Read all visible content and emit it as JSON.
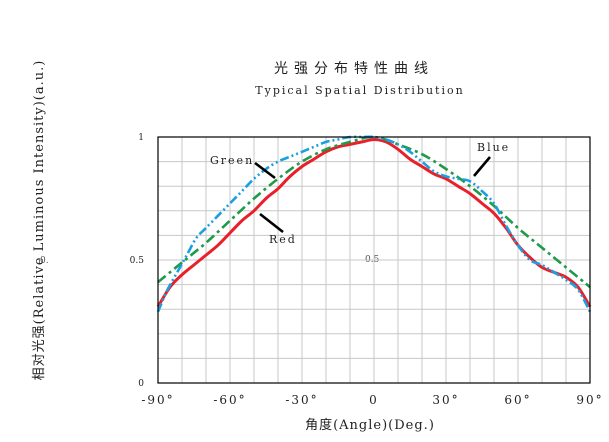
{
  "chart_data": {
    "type": "line",
    "title": "光强分布特性曲线",
    "subtitle": "Typical Spatial Distribution",
    "xlabel": "角度(Angle)(Deg.)",
    "ylabel": "相对光强(Relative Luminous Intensity)(a.u.)",
    "xlim": [
      -90,
      90
    ],
    "ylim": [
      0,
      1
    ],
    "x_ticks": [
      "-90°",
      "-60°",
      "-30°",
      "0",
      "30°",
      "60°",
      "90°"
    ],
    "y_ticks": [
      "0",
      "0.5",
      "1"
    ],
    "grid": true,
    "annotations": [
      "0.",
      "0.5"
    ],
    "series": [
      {
        "name": "Red",
        "color": "#e8202a",
        "dash": "solid",
        "x": [
          -90,
          -85,
          -80,
          -75,
          -70,
          -65,
          -60,
          -55,
          -50,
          -45,
          -40,
          -35,
          -30,
          -25,
          -20,
          -15,
          -10,
          -5,
          0,
          5,
          10,
          15,
          20,
          25,
          30,
          35,
          40,
          45,
          50,
          55,
          60,
          65,
          70,
          75,
          80,
          85,
          90
        ],
        "values": [
          0.31,
          0.39,
          0.44,
          0.48,
          0.52,
          0.56,
          0.61,
          0.66,
          0.7,
          0.75,
          0.79,
          0.84,
          0.88,
          0.91,
          0.94,
          0.96,
          0.97,
          0.98,
          0.99,
          0.98,
          0.95,
          0.91,
          0.88,
          0.85,
          0.83,
          0.8,
          0.77,
          0.73,
          0.69,
          0.63,
          0.56,
          0.51,
          0.47,
          0.45,
          0.43,
          0.39,
          0.31
        ]
      },
      {
        "name": "Green",
        "color": "#1f9a4a",
        "dash": "dashdot",
        "x": [
          -90,
          -80,
          -70,
          -60,
          -50,
          -40,
          -30,
          -20,
          -10,
          0,
          10,
          20,
          30,
          40,
          50,
          60,
          70,
          80,
          90
        ],
        "values": [
          0.41,
          0.49,
          0.57,
          0.66,
          0.75,
          0.83,
          0.9,
          0.95,
          0.98,
          1.0,
          0.97,
          0.93,
          0.87,
          0.8,
          0.72,
          0.63,
          0.55,
          0.47,
          0.39
        ]
      },
      {
        "name": "Blue",
        "color": "#1aa0e0",
        "dash": "dashdotdot",
        "x": [
          -90,
          -86,
          -82,
          -78,
          -74,
          -70,
          -65,
          -60,
          -55,
          -50,
          -45,
          -40,
          -35,
          -30,
          -25,
          -20,
          -15,
          -10,
          -5,
          0,
          5,
          10,
          15,
          20,
          25,
          30,
          35,
          40,
          45,
          50,
          55,
          60,
          65,
          70,
          75,
          80,
          85,
          90
        ],
        "values": [
          0.29,
          0.38,
          0.45,
          0.52,
          0.59,
          0.63,
          0.68,
          0.73,
          0.78,
          0.83,
          0.87,
          0.9,
          0.92,
          0.94,
          0.96,
          0.98,
          0.99,
          1.0,
          1.0,
          1.0,
          0.99,
          0.97,
          0.94,
          0.9,
          0.86,
          0.84,
          0.83,
          0.82,
          0.78,
          0.73,
          0.64,
          0.56,
          0.5,
          0.48,
          0.45,
          0.42,
          0.38,
          0.29
        ]
      }
    ],
    "legend_labels": [
      {
        "series": "Green",
        "text": "Green"
      },
      {
        "series": "Red",
        "text": "Red"
      },
      {
        "series": "Blue",
        "text": "Blue"
      }
    ]
  }
}
